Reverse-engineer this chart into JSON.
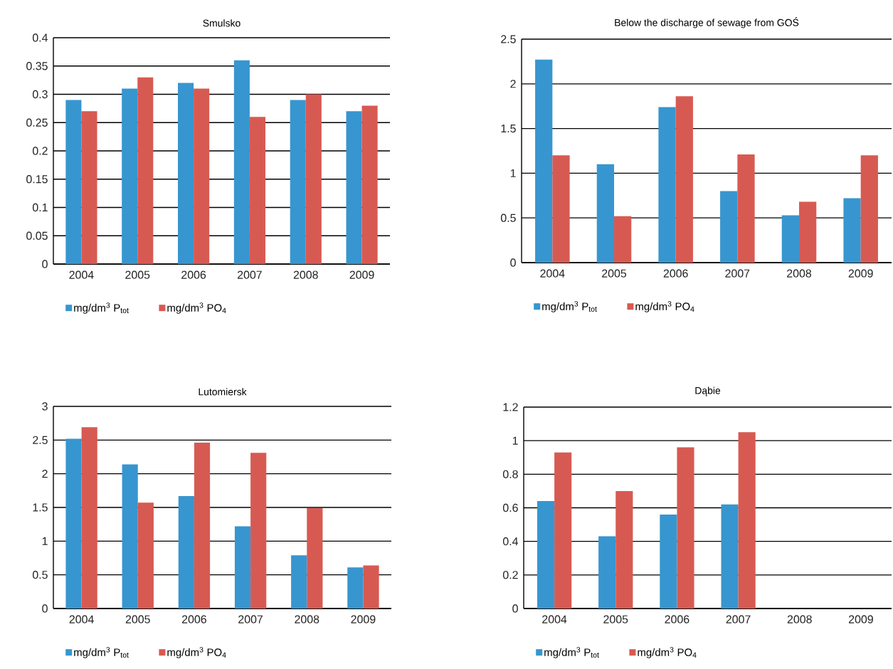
{
  "chart_data": [
    {
      "type": "bar",
      "title": "Smulsko",
      "categories": [
        "2004",
        "2005",
        "2006",
        "2007",
        "2008",
        "2009"
      ],
      "series": [
        {
          "name": "mg/dm$^{3}$ P$_{tot}$",
          "color": "#3796cf",
          "values": [
            0.29,
            0.31,
            0.32,
            0.36,
            0.29,
            0.27
          ]
        },
        {
          "name": "mg/dm$^{3}$ PO$_{4}$",
          "color": "#d75a52",
          "values": [
            0.27,
            0.33,
            0.31,
            0.26,
            0.3,
            0.28
          ]
        }
      ],
      "ylim": [
        0,
        0.4
      ],
      "yticks": [
        0,
        0.05,
        0.1,
        0.15,
        0.2,
        0.25,
        0.3,
        0.35,
        0.4
      ],
      "grid": "y",
      "legend": "bottom"
    },
    {
      "type": "bar",
      "title": "Below the discharge of sewage from GOŚ",
      "categories": [
        "2004",
        "2005",
        "2006",
        "2007",
        "2008",
        "2009"
      ],
      "series": [
        {
          "name": "mg/dm$^{3}$ P$_{tot}$",
          "color": "#3796cf",
          "values": [
            2.27,
            1.1,
            1.74,
            0.8,
            0.53,
            0.72
          ]
        },
        {
          "name": "mg/dm$^{3}$ PO$_{4}$",
          "color": "#d75a52",
          "values": [
            1.2,
            0.52,
            1.86,
            1.21,
            0.68,
            1.2
          ]
        }
      ],
      "ylim": [
        0,
        2.5
      ],
      "yticks": [
        0,
        0.5,
        1,
        1.5,
        2,
        2.5
      ],
      "grid": "y",
      "legend": "bottom"
    },
    {
      "type": "bar",
      "title": "Lutomiersk",
      "categories": [
        "2004",
        "2005",
        "2006",
        "2007",
        "2008",
        "2009"
      ],
      "series": [
        {
          "name": "mg/dm$^{3}$ P$_{tot}$",
          "color": "#3796cf",
          "values": [
            2.52,
            2.14,
            1.67,
            1.22,
            0.79,
            0.61
          ]
        },
        {
          "name": "mg/dm$^{3}$ PO$_{4}$",
          "color": "#d75a52",
          "values": [
            2.69,
            1.57,
            2.46,
            2.31,
            1.49,
            0.64
          ]
        }
      ],
      "ylim": [
        0,
        3
      ],
      "yticks": [
        0,
        0.5,
        1,
        1.5,
        2,
        2.5,
        3
      ],
      "grid": "y",
      "legend": "bottom"
    },
    {
      "type": "bar",
      "title": "Dąbie",
      "categories": [
        "2004",
        "2005",
        "2006",
        "2007",
        "2008",
        "2009"
      ],
      "series": [
        {
          "name": "mg/dm$^{3}$ P$_{tot}$",
          "color": "#3796cf",
          "values": [
            0.64,
            0.43,
            0.56,
            0.62,
            null,
            null
          ]
        },
        {
          "name": "mg/dm$^{3}$ PO$_{4}$",
          "color": "#d75a52",
          "values": [
            0.93,
            0.7,
            0.96,
            1.05,
            null,
            null
          ]
        }
      ],
      "ylim": [
        0,
        1.2
      ],
      "yticks": [
        0,
        0.2,
        0.4,
        0.6,
        0.8,
        1,
        1.2
      ],
      "grid": "y",
      "legend": "bottom"
    }
  ]
}
